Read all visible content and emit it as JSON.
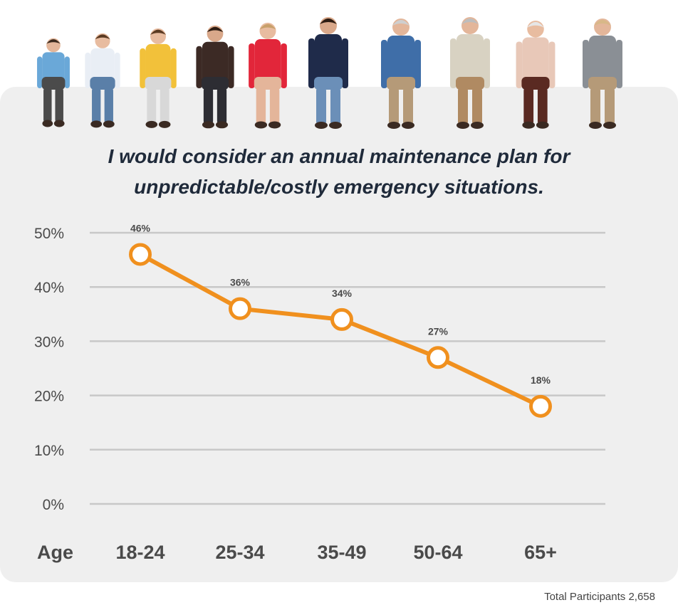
{
  "title_lines": [
    "I would consider an annual maintenance plan for",
    "unpredictable/costly emergency situations."
  ],
  "footer": "Total Participants 2,658",
  "colors": {
    "line": "#f0901e",
    "marker_fill": "#ffffff",
    "grid": "#c8c8c8",
    "text": "#4a4a4a",
    "title": "#1f2a3a",
    "panel": "#efefef"
  },
  "chart_data": {
    "type": "line",
    "title": "I would consider an annual maintenance plan for unpredictable/costly emergency situations.",
    "xlabel": "Age",
    "ylabel": "",
    "categories": [
      "18-24",
      "25-34",
      "35-49",
      "50-64",
      "65+"
    ],
    "series": [
      {
        "values": [
          46,
          36,
          34,
          27,
          18
        ]
      }
    ],
    "data_labels": [
      "46%",
      "36%",
      "34%",
      "27%",
      "18%"
    ],
    "yticks": [
      "0%",
      "10%",
      "20%",
      "30%",
      "40%",
      "50%"
    ],
    "ylim": [
      0,
      50
    ],
    "grid": true,
    "legend": "none"
  }
}
